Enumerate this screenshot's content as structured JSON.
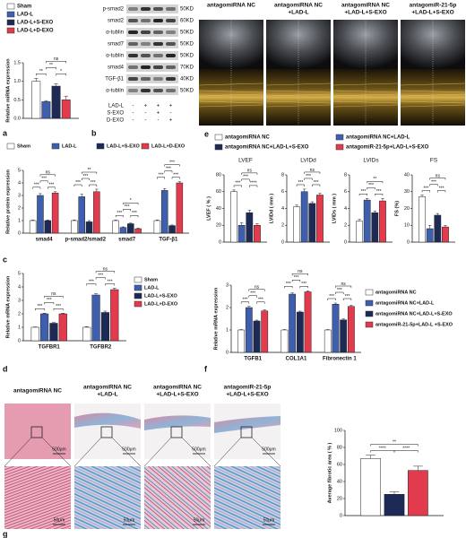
{
  "panel_labels": [
    "a",
    "b",
    "c",
    "d",
    "e",
    "f",
    "g"
  ],
  "blot": {
    "rows": [
      {
        "name": "p-smad2",
        "size": "50KD"
      },
      {
        "name": "smad2",
        "size": "60KD"
      },
      {
        "name": "α-tublin",
        "size": "50KD"
      },
      {
        "name": "smad7",
        "size": "50KD"
      },
      {
        "name": "α-tublin",
        "size": "50KD"
      },
      {
        "name": "smad4",
        "size": "70KD"
      },
      {
        "name": "TGF-β1",
        "size": "40KD"
      },
      {
        "name": "α-tublin",
        "size": "50KD"
      }
    ],
    "conditions": [
      {
        "name": "LAD-L",
        "signs": [
          "-",
          "+",
          "+",
          "+"
        ]
      },
      {
        "name": "S-EXO",
        "signs": [
          "-",
          "-",
          "+",
          "-"
        ]
      },
      {
        "name": "D-EXO",
        "signs": [
          "-",
          "-",
          "-",
          "+"
        ]
      }
    ]
  },
  "echo": {
    "titles": [
      [
        "antagomiRNA NC"
      ],
      [
        "antagomiRNA NC",
        "+LAD-L"
      ],
      [
        "antagomiRNA NC",
        "+LAD-L+S-EXO"
      ],
      [
        "antagomiR-21-5p",
        "+LAD-L+S-EXO"
      ]
    ]
  },
  "histology": {
    "titles": [
      [
        "antagomiRNA NC"
      ],
      [
        "antagomiRNA NC",
        "+LAD-L"
      ],
      [
        "antagomiRNA NC",
        "+LAD-L+S-EXO"
      ],
      [
        "antagomiR-21-5p",
        "+LAD-L+S-EXO"
      ]
    ],
    "scale_labels": [
      "500μm",
      "50μm"
    ]
  },
  "chart_data": [
    {
      "type": "bar",
      "y_label": "Relative miRNA expression",
      "categories": [
        null
      ],
      "series": [
        {
          "name": "Sham",
          "color": "#ffffff",
          "values": [
            1.0
          ],
          "errors": [
            0.08
          ]
        },
        {
          "name": "LAD-L",
          "color": "#3d5fae",
          "values": [
            0.45
          ],
          "errors": [
            0.03
          ]
        },
        {
          "name": "LAD-L+S-EXO",
          "color": "#1d2a56",
          "values": [
            0.87
          ],
          "errors": [
            0.06
          ]
        },
        {
          "name": "LAD-L+D-EXO",
          "color": "#e23b4e",
          "values": [
            0.5
          ],
          "errors": [
            0.1
          ]
        }
      ],
      "ylim": [
        0,
        1.5
      ],
      "yticks": [
        {
          "value": 0,
          "label": "0.0"
        },
        0.5,
        {
          "value": 1,
          "label": "1.0"
        },
        1.5
      ],
      "significance": [
        [
          "**",
          "**",
          "*",
          "ns"
        ]
      ]
    },
    {
      "type": "bar",
      "y_label": "Relative protein expression",
      "categories": [
        "smad4",
        "p-smad2/smad2",
        "smad7",
        "TGF-β1"
      ],
      "series": [
        {
          "name": "Sham",
          "color": "#ffffff",
          "values": [
            1,
            1,
            1,
            1
          ],
          "errors": [
            0.05,
            0.05,
            0.05,
            0.05
          ]
        },
        {
          "name": "LAD-L",
          "color": "#3d5fae",
          "values": [
            3,
            2.9,
            0.45,
            3.4
          ],
          "errors": [
            0.15,
            0.2,
            0.05,
            0.15
          ]
        },
        {
          "name": "LAD-L+S-EXO",
          "color": "#1d2a56",
          "values": [
            1,
            0.9,
            0.75,
            0.6
          ],
          "errors": [
            0.05,
            0.1,
            0.05,
            0.05
          ]
        },
        {
          "name": "LAD-L+D-EXO",
          "color": "#e23b4e",
          "values": [
            3.2,
            3.3,
            0.35,
            4
          ],
          "errors": [
            0.1,
            0.2,
            0.05,
            0.1
          ]
        }
      ],
      "ylim": [
        0,
        5
      ],
      "yticks": [
        0,
        1,
        2,
        3,
        4,
        5
      ],
      "significance": [
        [
          "***",
          "***",
          "***",
          "ns"
        ],
        [
          "***",
          "***",
          "***",
          "**"
        ],
        [
          "***",
          "***",
          "***",
          "*"
        ],
        [
          "***",
          "***",
          "***",
          "***"
        ]
      ]
    },
    {
      "type": "bar",
      "y_label": "Relative mRNA expression",
      "categories": [
        "TGFBR1",
        "TGFBR2"
      ],
      "series": [
        {
          "name": "Sham",
          "color": "#ffffff",
          "values": [
            1,
            1
          ],
          "errors": [
            0.03,
            0.05
          ]
        },
        {
          "name": "LAD-L",
          "color": "#3d5fae",
          "values": [
            2,
            3.4
          ],
          "errors": [
            0.05,
            0.1
          ]
        },
        {
          "name": "LAD-L+S-EXO",
          "color": "#1d2a56",
          "values": [
            1.3,
            2.1
          ],
          "errors": [
            0.05,
            0.1
          ]
        },
        {
          "name": "LAD-L+D-EXO",
          "color": "#e23b4e",
          "values": [
            2,
            3.8
          ],
          "errors": [
            0.05,
            0.1
          ]
        }
      ],
      "ylim": [
        0,
        5
      ],
      "yticks": [
        0,
        1,
        2,
        3,
        4,
        5
      ],
      "significance": [
        [
          "***",
          "***",
          "***",
          "ns"
        ],
        [
          "***",
          "***",
          "***",
          "ns"
        ]
      ]
    },
    {
      "type": "bar",
      "title": "LVEF",
      "y_label": "LVEF ( % )",
      "categories": [
        null
      ],
      "series": [
        {
          "name": "antagomiRNA NC",
          "color": "#ffffff",
          "values": [
            60
          ],
          "errors": [
            2
          ]
        },
        {
          "name": "antagomiRNA NC+LAD-L",
          "color": "#3d5fae",
          "values": [
            20
          ],
          "errors": [
            3
          ]
        },
        {
          "name": "antagomiRNA NC+LAD-L+S-EXO",
          "color": "#1d2a56",
          "values": [
            35
          ],
          "errors": [
            3
          ]
        },
        {
          "name": "antagomiR-21-5p+LAD-L+S-EXO",
          "color": "#e23b4e",
          "values": [
            20
          ],
          "errors": [
            2
          ]
        }
      ],
      "ylim": [
        0,
        80
      ],
      "yticks": [
        0,
        20,
        40,
        60,
        80
      ],
      "significance": [
        [
          "***",
          "***",
          "****",
          "ns"
        ]
      ]
    },
    {
      "type": "bar",
      "title": "LVIDd",
      "y_label": "LVIDd ( mm )",
      "categories": [
        null
      ],
      "series": [
        {
          "color": "#ffffff",
          "values": [
            4.2
          ],
          "errors": [
            0.2
          ]
        },
        {
          "color": "#3d5fae",
          "values": [
            6
          ],
          "errors": [
            0.3
          ]
        },
        {
          "color": "#1d2a56",
          "values": [
            4.6
          ],
          "errors": [
            0.2
          ]
        },
        {
          "color": "#e23b4e",
          "values": [
            5.6
          ],
          "errors": [
            0.2
          ]
        }
      ],
      "ylim": [
        0,
        8
      ],
      "yticks": [
        0,
        2,
        4,
        6,
        8
      ],
      "significance": [
        [
          "***",
          "***",
          "***",
          "ns"
        ]
      ]
    },
    {
      "type": "bar",
      "title": "LVIDs",
      "y_label": "LVIDs ( mm )",
      "categories": [
        null
      ],
      "series": [
        {
          "color": "#ffffff",
          "values": [
            2.5
          ],
          "errors": [
            0.2
          ]
        },
        {
          "color": "#3d5fae",
          "values": [
            5
          ],
          "errors": [
            0.2
          ]
        },
        {
          "color": "#1d2a56",
          "values": [
            3.5
          ],
          "errors": [
            0.2
          ]
        },
        {
          "color": "#e23b4e",
          "values": [
            4.9
          ],
          "errors": [
            0.3
          ]
        }
      ],
      "ylim": [
        0,
        8
      ],
      "yticks": [
        0,
        2,
        4,
        6,
        8
      ],
      "significance": [
        [
          "***",
          "***",
          "***",
          "**"
        ]
      ]
    },
    {
      "type": "bar",
      "title": "FS",
      "y_label": "FS (%)",
      "categories": [
        null
      ],
      "series": [
        {
          "color": "#ffffff",
          "values": [
            27
          ],
          "errors": [
            1
          ]
        },
        {
          "color": "#3d5fae",
          "values": [
            8
          ],
          "errors": [
            2
          ]
        },
        {
          "color": "#1d2a56",
          "values": [
            16
          ],
          "errors": [
            1
          ]
        },
        {
          "color": "#e23b4e",
          "values": [
            9
          ],
          "errors": [
            1
          ]
        }
      ],
      "ylim": [
        0,
        40
      ],
      "yticks": [
        0,
        10,
        20,
        30,
        40
      ],
      "significance": [
        [
          "***",
          "***",
          "***",
          "ns"
        ]
      ]
    },
    {
      "type": "bar",
      "y_label": "Relative mRNA expression",
      "categories": [
        "TGFB1",
        "COL1A1",
        "Fibronectin 1"
      ],
      "series": [
        {
          "name": "antagomiRNA NC",
          "color": "#ffffff",
          "values": [
            1,
            1,
            1
          ],
          "errors": [
            0.02,
            0.02,
            0.02
          ]
        },
        {
          "name": "antagomiRNA NC+LAD-L",
          "color": "#3d5fae",
          "values": [
            2,
            2.6,
            2.15
          ],
          "errors": [
            0.05,
            0.05,
            0.05
          ]
        },
        {
          "name": "antagomiRNA NC+LAD-L+S-EXO",
          "color": "#1d2a56",
          "values": [
            1.4,
            1.8,
            1.45
          ],
          "errors": [
            0.04,
            0.04,
            0.04
          ]
        },
        {
          "name": "antagomiR-21-5p+LAD-L +S-EXO",
          "color": "#e23b4e",
          "values": [
            1.85,
            2.7,
            2.05
          ],
          "errors": [
            0.05,
            0.05,
            0.05
          ]
        }
      ],
      "ylim": [
        0,
        3
      ],
      "yticks": [
        0,
        1,
        2,
        3
      ],
      "significance": [
        [
          "***",
          "***",
          "***",
          "ns"
        ],
        [
          "***",
          "***",
          "***",
          "ns"
        ],
        [
          "***",
          "***",
          "***",
          "ns"
        ]
      ]
    },
    {
      "type": "bar",
      "y_label": "Average fibrotic area ( % )",
      "categories": [
        null
      ],
      "series": [
        {
          "color": "#ffffff",
          "values": [
            67
          ],
          "errors": [
            4
          ]
        },
        {
          "color": "#1d2a56",
          "values": [
            25
          ],
          "errors": [
            3
          ]
        },
        {
          "color": "#e23b4e",
          "values": [
            53
          ],
          "errors": [
            5
          ]
        }
      ],
      "ylim": [
        0,
        100
      ],
      "yticks": [
        0,
        20,
        40,
        60,
        80,
        100
      ],
      "significance": [
        [
          "****",
          "****",
          "**"
        ]
      ]
    }
  ]
}
